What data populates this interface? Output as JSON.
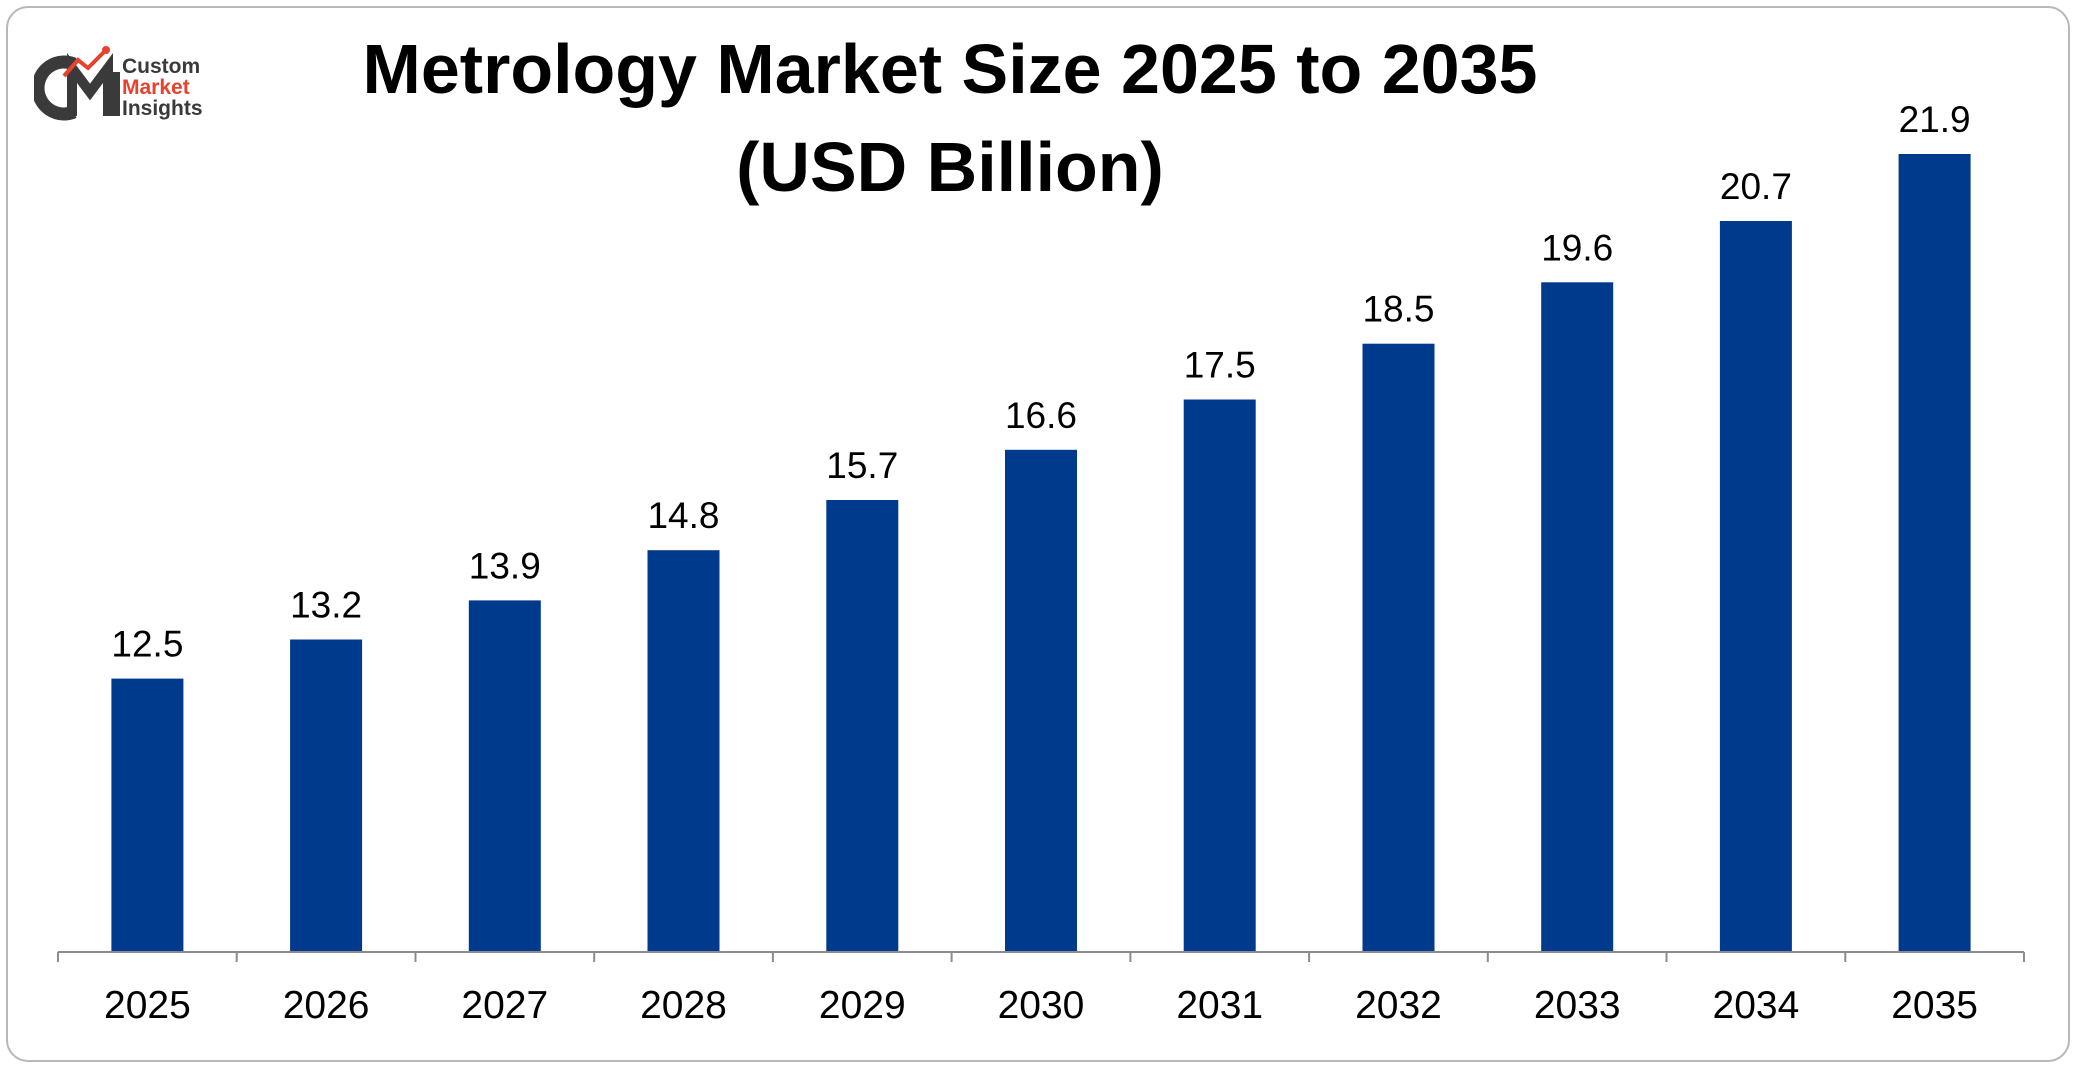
{
  "brand": {
    "logo_letters": "CMI",
    "line1": "Custom",
    "line2": "Market",
    "line3": "Insights",
    "colors": {
      "dark": "#3a3a3a",
      "accent": "#e8412c"
    }
  },
  "chart_data": {
    "type": "bar",
    "title": "Metrology Market Size 2025 to 2035",
    "subtitle": "(USD Billion)",
    "xlabel": "",
    "ylabel": "",
    "categories": [
      "2025",
      "2026",
      "2027",
      "2028",
      "2029",
      "2030",
      "2031",
      "2032",
      "2033",
      "2034",
      "2035"
    ],
    "values": [
      12.5,
      13.2,
      13.9,
      14.8,
      15.7,
      16.6,
      17.5,
      18.5,
      19.6,
      20.7,
      21.9
    ],
    "value_labels": [
      "12.5",
      "13.2",
      "13.9",
      "14.8",
      "15.7",
      "16.6",
      "17.5",
      "18.5",
      "19.6",
      "20.7",
      "21.9"
    ],
    "ylim": [
      7.6,
      21.9
    ],
    "grid": false,
    "legend": "none",
    "bar_color": "#003a8c"
  }
}
